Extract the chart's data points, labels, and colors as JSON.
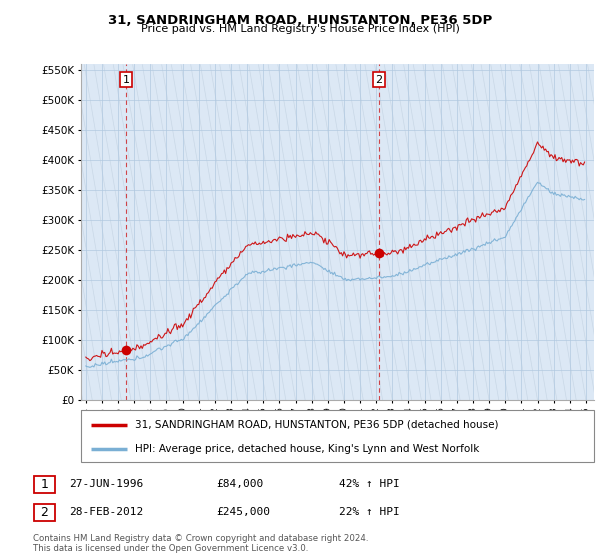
{
  "title": "31, SANDRINGHAM ROAD, HUNSTANTON, PE36 5DP",
  "subtitle": "Price paid vs. HM Land Registry's House Price Index (HPI)",
  "legend_line1": "31, SANDRINGHAM ROAD, HUNSTANTON, PE36 5DP (detached house)",
  "legend_line2": "HPI: Average price, detached house, King's Lynn and West Norfolk",
  "sale1_date": "27-JUN-1996",
  "sale1_price": "£84,000",
  "sale1_hpi": "42% ↑ HPI",
  "sale2_date": "28-FEB-2012",
  "sale2_price": "£245,000",
  "sale2_hpi": "22% ↑ HPI",
  "footer": "Contains HM Land Registry data © Crown copyright and database right 2024.\nThis data is licensed under the Open Government Licence v3.0.",
  "red_color": "#cc0000",
  "blue_color": "#7aafd4",
  "grid_color": "#c8d8e8",
  "bg_color": "#ffffff",
  "plot_bg": "#dce8f5",
  "hatch_color": "#c0d0e0",
  "ylim": [
    0,
    560000
  ],
  "yticks": [
    0,
    50000,
    100000,
    150000,
    200000,
    250000,
    300000,
    350000,
    400000,
    450000,
    500000,
    550000
  ],
  "sale1_year": 1996.5,
  "sale2_year": 2012.17,
  "sale1_value": 84000,
  "sale2_value": 245000,
  "xmin": 1993.7,
  "xmax": 2025.5
}
